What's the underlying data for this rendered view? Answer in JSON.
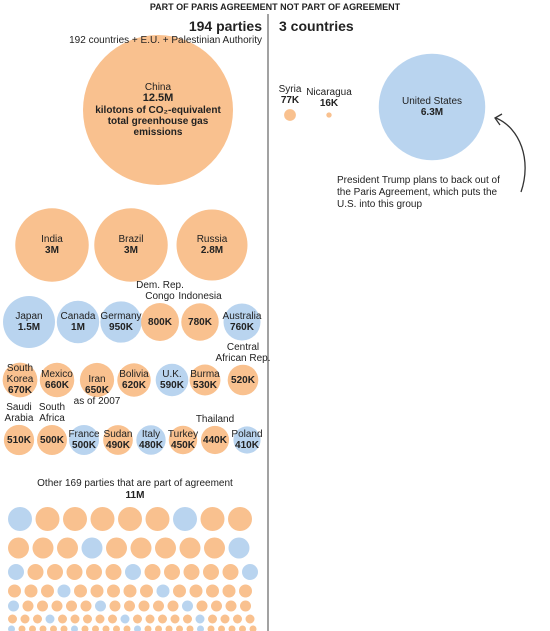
{
  "chart_data": {
    "type": "bubble",
    "title_left": "PART OF PARIS AGREEMENT",
    "title_right": "NOT PART OF AGREEMENT",
    "groups": [
      {
        "title": "194 parties",
        "subtitle": "192 countries + E.U. + Palestinian Authority",
        "categories": [
          "China",
          "India",
          "Brazil",
          "Russia",
          "Japan",
          "Canada",
          "Germany",
          "Dem. Rep. Congo",
          "Indonesia",
          "Australia",
          "South Korea",
          "Mexico",
          "Iran",
          "Bolivia",
          "U.K.",
          "Burma",
          "Central African Rep.",
          "Saudi Arabia",
          "South Africa",
          "France",
          "Sudan",
          "Italy",
          "Turkey",
          "Thailand",
          "Poland"
        ],
        "values": [
          12500000,
          3000000,
          3000000,
          2800000,
          1500000,
          1000000,
          950000,
          800000,
          780000,
          760000,
          670000,
          660000,
          650000,
          620000,
          590000,
          530000,
          520000,
          510000,
          500000,
          500000,
          490000,
          480000,
          450000,
          440000,
          410000
        ],
        "value_labels": [
          "12.5M",
          "3M",
          "3M",
          "2.8M",
          "1.5M",
          "1M",
          "950K",
          "800K",
          "780K",
          "760K",
          "670K",
          "660K",
          "650K",
          "620K",
          "590K",
          "530K",
          "520K",
          "510K",
          "500K",
          "500K",
          "490K",
          "480K",
          "450K",
          "440K",
          "410K"
        ],
        "colors": [
          "#f9c18f",
          "#f9c18f",
          "#f9c18f",
          "#f9c18f",
          "#b9d4ef",
          "#b9d4ef",
          "#b9d4ef",
          "#f9c18f",
          "#f9c18f",
          "#b9d4ef",
          "#f9c18f",
          "#f9c18f",
          "#f9c18f",
          "#f9c18f",
          "#b9d4ef",
          "#f9c18f",
          "#f9c18f",
          "#f9c18f",
          "#f9c18f",
          "#b9d4ef",
          "#f9c18f",
          "#b9d4ef",
          "#f9c18f",
          "#f9c18f",
          "#b9d4ef"
        ]
      },
      {
        "title": "3 countries",
        "categories": [
          "Syria",
          "Nicaragua",
          "United States"
        ],
        "values": [
          77000,
          16000,
          6300000
        ],
        "value_labels": [
          "77K",
          "16K",
          "6.3M"
        ],
        "colors": [
          "#f9c18f",
          "#f9c18f",
          "#b9d4ef"
        ]
      }
    ],
    "unit_note": "kilotons of CO₂-equivalent total greenhouse gas emissions",
    "iran_note": "as of 2007",
    "trump_note": "President Trump plans to back out of the Paris Agreement, which puts the U.S. into this group",
    "other": {
      "label": "Other 169 parties that are part of agreement",
      "value": 11000000,
      "value_label": "11M"
    }
  }
}
